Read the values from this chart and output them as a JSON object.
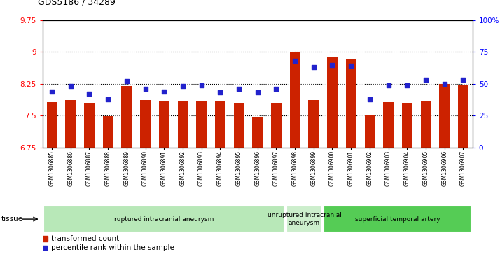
{
  "title": "GDS5186 / 34289",
  "samples": [
    "GSM1306885",
    "GSM1306886",
    "GSM1306887",
    "GSM1306888",
    "GSM1306889",
    "GSM1306890",
    "GSM1306891",
    "GSM1306892",
    "GSM1306893",
    "GSM1306894",
    "GSM1306895",
    "GSM1306896",
    "GSM1306897",
    "GSM1306898",
    "GSM1306899",
    "GSM1306900",
    "GSM1306901",
    "GSM1306902",
    "GSM1306903",
    "GSM1306904",
    "GSM1306905",
    "GSM1306906",
    "GSM1306907"
  ],
  "bar_values": [
    7.82,
    7.87,
    7.8,
    7.48,
    8.19,
    7.86,
    7.85,
    7.85,
    7.83,
    7.83,
    7.8,
    7.47,
    7.8,
    9.01,
    7.87,
    8.88,
    8.84,
    7.52,
    7.82,
    7.8,
    7.84,
    8.24,
    8.22
  ],
  "percentile_values": [
    44,
    48,
    42,
    38,
    52,
    46,
    44,
    48,
    49,
    43,
    46,
    43,
    46,
    68,
    63,
    65,
    64,
    38,
    49,
    49,
    53,
    50,
    53
  ],
  "groups": [
    {
      "label": "ruptured intracranial aneurysm",
      "start": 0,
      "end": 12
    },
    {
      "label": "unruptured intracranial\naneurysm",
      "start": 13,
      "end": 14
    },
    {
      "label": "superficial temporal artery",
      "start": 15,
      "end": 22
    }
  ],
  "group_colors": [
    "#b8e8b8",
    "#cceecc",
    "#55cc55"
  ],
  "ylim_left": [
    6.75,
    9.75
  ],
  "ylim_right": [
    0,
    100
  ],
  "yticks_left": [
    6.75,
    7.5,
    8.25,
    9.0,
    9.75
  ],
  "yticks_right": [
    0,
    25,
    50,
    75,
    100
  ],
  "ytick_labels_left": [
    "6.75",
    "7.5",
    "8.25",
    "9",
    "9.75"
  ],
  "ytick_labels_right": [
    "0",
    "25",
    "50",
    "75",
    "100%"
  ],
  "bar_color": "#cc2200",
  "dot_color": "#2222cc",
  "bar_bottom": 6.75,
  "tissue_label": "tissue",
  "legend_bar_label": "transformed count",
  "legend_dot_label": "percentile rank within the sample",
  "gridlines": [
    7.5,
    8.25,
    9.0
  ]
}
